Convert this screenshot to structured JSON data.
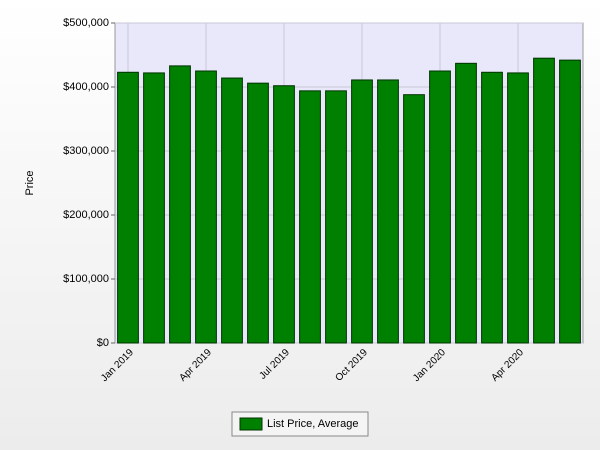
{
  "chart_data": {
    "type": "bar",
    "y_label": "Price",
    "categories": [
      "Jan 2019",
      null,
      null,
      "Apr 2019",
      null,
      null,
      "Jul 2019",
      null,
      null,
      "Oct 2019",
      null,
      null,
      "Jan 2020",
      null,
      null,
      "Apr 2020",
      null,
      null
    ],
    "series": [
      {
        "name": "List Price, Average",
        "color": "#008000",
        "values": [
          423000,
          422000,
          433000,
          425000,
          414000,
          406000,
          402000,
          394000,
          394000,
          411000,
          411000,
          388000,
          425000,
          437000,
          423000,
          422000,
          445000,
          442000
        ]
      }
    ],
    "ylim": [
      0,
      500000
    ],
    "yticks": [
      {
        "value": 0,
        "label": "$0"
      },
      {
        "value": 100000,
        "label": "$100,000"
      },
      {
        "value": 200000,
        "label": "$200,000"
      },
      {
        "value": 300000,
        "label": "$300,000"
      },
      {
        "value": 400000,
        "label": "$400,000"
      },
      {
        "value": 500000,
        "label": "$500,000"
      }
    ],
    "grid": true,
    "legend": "bottom"
  }
}
